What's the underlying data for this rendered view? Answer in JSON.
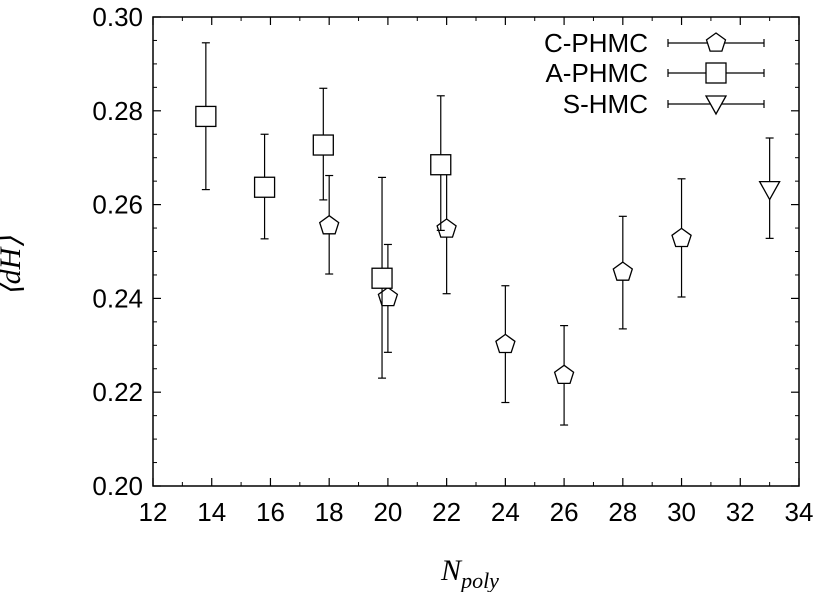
{
  "chart_data": {
    "type": "scatter",
    "title": "",
    "xlabel": "N",
    "xlabel_subscript": "poly",
    "ylabel": "⟨dH⟩",
    "xlim": [
      12,
      34
    ],
    "ylim": [
      0.2,
      0.3
    ],
    "x_ticks": [
      "12",
      "14",
      "16",
      "18",
      "20",
      "22",
      "24",
      "26",
      "28",
      "30",
      "32",
      "34"
    ],
    "y_ticks": [
      "0.20",
      "0.22",
      "0.24",
      "0.26",
      "0.28",
      "0.30"
    ],
    "grid": false,
    "legend_position": "top-right",
    "series": [
      {
        "name": "C-PHMC",
        "marker": "pentagon",
        "points": [
          {
            "x": 18,
            "y": 0.2555,
            "err_low": 0.2452,
            "err_high": 0.2662
          },
          {
            "x": 20,
            "y": 0.2402,
            "err_low": 0.2285,
            "err_high": 0.2515
          },
          {
            "x": 22,
            "y": 0.2548,
            "err_low": 0.241,
            "err_high": 0.2688
          },
          {
            "x": 24,
            "y": 0.2302,
            "err_low": 0.2178,
            "err_high": 0.2427
          },
          {
            "x": 26,
            "y": 0.2236,
            "err_low": 0.213,
            "err_high": 0.2342
          },
          {
            "x": 28,
            "y": 0.2456,
            "err_low": 0.2335,
            "err_high": 0.2575
          },
          {
            "x": 30,
            "y": 0.2528,
            "err_low": 0.2403,
            "err_high": 0.2655
          }
        ]
      },
      {
        "name": "A-PHMC",
        "marker": "square",
        "points": [
          {
            "x": 13.8,
            "y": 0.2788,
            "err_low": 0.2632,
            "err_high": 0.2945
          },
          {
            "x": 15.8,
            "y": 0.2637,
            "err_low": 0.2527,
            "err_high": 0.275
          },
          {
            "x": 17.8,
            "y": 0.2727,
            "err_low": 0.261,
            "err_high": 0.2848
          },
          {
            "x": 19.8,
            "y": 0.2443,
            "err_low": 0.223,
            "err_high": 0.2658
          },
          {
            "x": 21.8,
            "y": 0.2685,
            "err_low": 0.2545,
            "err_high": 0.2832
          }
        ]
      },
      {
        "name": "S-HMC",
        "marker": "triangle-down",
        "points": [
          {
            "x": 33,
            "y": 0.2632,
            "err_low": 0.2528,
            "err_high": 0.2742
          }
        ]
      }
    ]
  },
  "style": {
    "line_color": "#000000",
    "background": "#ffffff"
  }
}
